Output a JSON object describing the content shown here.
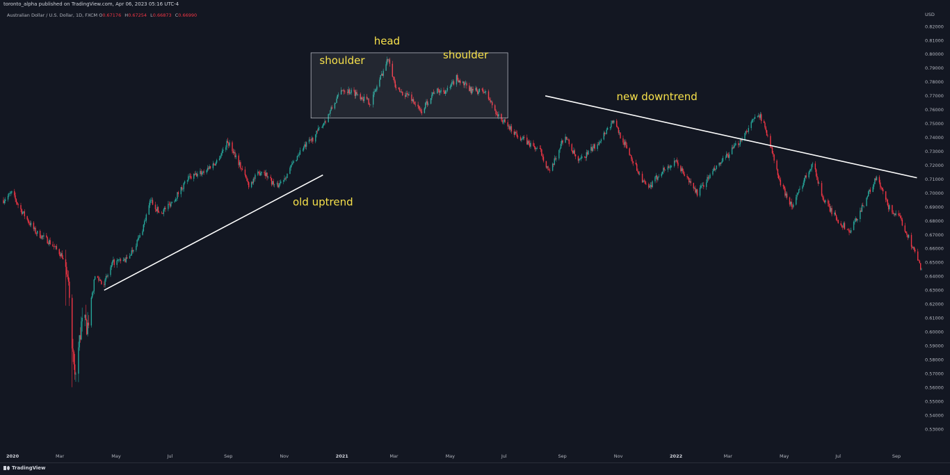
{
  "header": {
    "published": "toronto_alpha published on TradingView.com, Apr 06, 2023 05:16 UTC-4"
  },
  "legend": {
    "symbol": "Australian Dollar / U.S. Dollar, 1D, FXCM",
    "open_label": "O",
    "open": "0.67176",
    "high_label": "H",
    "high": "0.67254",
    "low_label": "L",
    "low": "0.66873",
    "close_label": "C",
    "close": "0.66990"
  },
  "footer": {
    "brand": "TradingView"
  },
  "colors": {
    "background": "#131722",
    "up": "#26a69a",
    "down": "#f23645",
    "annotation": "#f7e14b",
    "line": "#ffffff"
  },
  "chart_data": {
    "type": "candlestick",
    "currency": "USD",
    "y_ticks": [
      "0.82000",
      "0.81000",
      "0.80000",
      "0.79000",
      "0.78000",
      "0.77000",
      "0.76000",
      "0.75000",
      "0.74000",
      "0.73000",
      "0.72000",
      "0.71000",
      "0.70000",
      "0.69000",
      "0.68000",
      "0.67000",
      "0.66000",
      "0.65000",
      "0.64000",
      "0.63000",
      "0.62000",
      "0.61000",
      "0.60000",
      "0.59000",
      "0.58000",
      "0.57000",
      "0.56000",
      "0.55000",
      "0.54000",
      "0.53000"
    ],
    "ylim": [
      0.525,
      0.825
    ],
    "x_ticks": [
      "2020",
      "Mar",
      "May",
      "Jul",
      "Sep",
      "Nov",
      "2021",
      "Mar",
      "May",
      "Jul",
      "Sep",
      "Nov",
      "2022",
      "Mar",
      "May",
      "Jul",
      "Sep"
    ],
    "xlim": [
      "2020-01-01",
      "2022-09-30"
    ],
    "close_path": [
      [
        "2020-01-01",
        0.695
      ],
      [
        "2020-01-10",
        0.7
      ],
      [
        "2020-01-20",
        0.688
      ],
      [
        "2020-02-05",
        0.672
      ],
      [
        "2020-02-20",
        0.665
      ],
      [
        "2020-03-05",
        0.655
      ],
      [
        "2020-03-12",
        0.63
      ],
      [
        "2020-03-19",
        0.565
      ],
      [
        "2020-03-26",
        0.605
      ],
      [
        "2020-04-02",
        0.605
      ],
      [
        "2020-04-10",
        0.64
      ],
      [
        "2020-04-20",
        0.635
      ],
      [
        "2020-04-30",
        0.65
      ],
      [
        "2020-05-15",
        0.652
      ],
      [
        "2020-05-30",
        0.67
      ],
      [
        "2020-06-10",
        0.695
      ],
      [
        "2020-06-20",
        0.685
      ],
      [
        "2020-07-05",
        0.695
      ],
      [
        "2020-07-20",
        0.71
      ],
      [
        "2020-08-05",
        0.715
      ],
      [
        "2020-08-20",
        0.722
      ],
      [
        "2020-09-02",
        0.737
      ],
      [
        "2020-09-10",
        0.728
      ],
      [
        "2020-09-25",
        0.706
      ],
      [
        "2020-10-10",
        0.717
      ],
      [
        "2020-10-25",
        0.704
      ],
      [
        "2020-11-05",
        0.713
      ],
      [
        "2020-11-20",
        0.73
      ],
      [
        "2020-12-05",
        0.74
      ],
      [
        "2020-12-20",
        0.755
      ],
      [
        "2021-01-05",
        0.775
      ],
      [
        "2021-01-20",
        0.772
      ],
      [
        "2021-02-05",
        0.765
      ],
      [
        "2021-02-20",
        0.79
      ],
      [
        "2021-02-25",
        0.798
      ],
      [
        "2021-03-05",
        0.774
      ],
      [
        "2021-03-20",
        0.77
      ],
      [
        "2021-04-01",
        0.758
      ],
      [
        "2021-04-15",
        0.773
      ],
      [
        "2021-05-01",
        0.774
      ],
      [
        "2021-05-10",
        0.783
      ],
      [
        "2021-05-25",
        0.774
      ],
      [
        "2021-06-10",
        0.773
      ],
      [
        "2021-06-25",
        0.755
      ],
      [
        "2021-07-10",
        0.745
      ],
      [
        "2021-07-25",
        0.737
      ],
      [
        "2021-08-10",
        0.73
      ],
      [
        "2021-08-20",
        0.714
      ],
      [
        "2021-09-05",
        0.742
      ],
      [
        "2021-09-20",
        0.722
      ],
      [
        "2021-10-10",
        0.735
      ],
      [
        "2021-10-28",
        0.752
      ],
      [
        "2021-11-10",
        0.735
      ],
      [
        "2021-11-25",
        0.715
      ],
      [
        "2021-12-05",
        0.702
      ],
      [
        "2021-12-20",
        0.716
      ],
      [
        "2022-01-05",
        0.722
      ],
      [
        "2022-01-28",
        0.7
      ],
      [
        "2022-02-15",
        0.716
      ],
      [
        "2022-03-01",
        0.726
      ],
      [
        "2022-03-15",
        0.737
      ],
      [
        "2022-04-05",
        0.758
      ],
      [
        "2022-04-15",
        0.742
      ],
      [
        "2022-04-28",
        0.708
      ],
      [
        "2022-05-12",
        0.69
      ],
      [
        "2022-05-25",
        0.71
      ],
      [
        "2022-06-03",
        0.722
      ],
      [
        "2022-06-15",
        0.695
      ],
      [
        "2022-07-01",
        0.68
      ],
      [
        "2022-07-14",
        0.672
      ],
      [
        "2022-08-01",
        0.697
      ],
      [
        "2022-08-12",
        0.711
      ],
      [
        "2022-08-25",
        0.69
      ],
      [
        "2022-09-08",
        0.68
      ],
      [
        "2022-09-20",
        0.662
      ],
      [
        "2022-09-30",
        0.645
      ]
    ],
    "annotations": {
      "uptrend_line": {
        "from": [
          "2020-04-20",
          0.63
        ],
        "to": [
          "2020-12-15",
          0.713
        ]
      },
      "downtrend_line": {
        "from": [
          "2021-08-15",
          0.77
        ],
        "to": [
          "2022-09-25",
          0.711
        ]
      },
      "hs_box": {
        "from": [
          "2020-12-02",
          0.801
        ],
        "to": [
          "2021-07-05",
          0.754
        ]
      },
      "labels": [
        {
          "text": "head",
          "at": [
            "2021-02-23",
            0.807
          ]
        },
        {
          "text": "shoulder",
          "at": [
            "2021-01-05",
            0.793
          ]
        },
        {
          "text": "shoulder",
          "at": [
            "2021-05-20",
            0.797
          ]
        },
        {
          "text": "new downtrend",
          "at": [
            "2021-12-15",
            0.767
          ]
        },
        {
          "text": "old uptrend",
          "at": [
            "2020-12-15",
            0.691
          ]
        }
      ]
    }
  }
}
